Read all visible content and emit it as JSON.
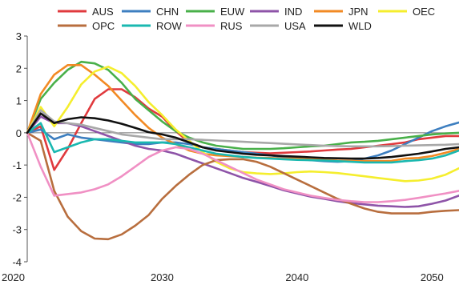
{
  "chart_data": {
    "type": "line",
    "title": "",
    "xlabel": "",
    "ylabel": "",
    "xlim": [
      2020,
      2052
    ],
    "ylim": [
      -4,
      3
    ],
    "x_ticks": [
      {
        "value": 2020,
        "label": "2020"
      },
      {
        "value": 2030,
        "label": "2030"
      },
      {
        "value": 2040,
        "label": "2040"
      },
      {
        "value": 2050,
        "label": "2050"
      }
    ],
    "y_ticks": [
      {
        "value": 3,
        "label": "3"
      },
      {
        "value": 2,
        "label": "2"
      },
      {
        "value": 1,
        "label": "1"
      },
      {
        "value": 0,
        "label": "0"
      },
      {
        "value": -1,
        "label": "-1"
      },
      {
        "value": -2,
        "label": "-2"
      },
      {
        "value": -3,
        "label": "-3"
      },
      {
        "value": -4,
        "label": "-4"
      }
    ],
    "zero_line": true,
    "grid": false,
    "legend_position": "top",
    "x": [
      2020,
      2021,
      2022,
      2023,
      2024,
      2025,
      2026,
      2027,
      2028,
      2029,
      2030,
      2031,
      2032,
      2033,
      2034,
      2035,
      2036,
      2037,
      2038,
      2039,
      2040,
      2041,
      2042,
      2043,
      2044,
      2045,
      2046,
      2047,
      2048,
      2049,
      2050,
      2051,
      2052
    ],
    "series": [
      {
        "name": "AUS",
        "color": "#e03a3e",
        "values": [
          0,
          0.2,
          -1.15,
          -0.5,
          0.3,
          1.05,
          1.35,
          1.35,
          1.1,
          0.75,
          0.5,
          0.05,
          -0.3,
          -0.45,
          -0.5,
          -0.55,
          -0.6,
          -0.62,
          -0.64,
          -0.62,
          -0.6,
          -0.58,
          -0.55,
          -0.52,
          -0.5,
          -0.45,
          -0.4,
          -0.35,
          -0.3,
          -0.2,
          -0.15,
          -0.1,
          -0.1
        ]
      },
      {
        "name": "CHN",
        "color": "#3e7fc0",
        "values": [
          0,
          0.1,
          -0.2,
          -0.05,
          -0.15,
          -0.2,
          -0.25,
          -0.3,
          -0.35,
          -0.35,
          -0.3,
          -0.3,
          -0.35,
          -0.45,
          -0.5,
          -0.55,
          -0.6,
          -0.65,
          -0.7,
          -0.75,
          -0.8,
          -0.85,
          -0.88,
          -0.9,
          -0.88,
          -0.8,
          -0.7,
          -0.55,
          -0.35,
          -0.15,
          0.05,
          0.2,
          0.32
        ]
      },
      {
        "name": "EUW",
        "color": "#49b04a",
        "values": [
          0,
          1.05,
          1.55,
          1.95,
          2.2,
          2.15,
          1.95,
          1.55,
          1.05,
          0.7,
          0.35,
          0.05,
          -0.15,
          -0.3,
          -0.4,
          -0.45,
          -0.5,
          -0.5,
          -0.5,
          -0.48,
          -0.45,
          -0.42,
          -0.4,
          -0.35,
          -0.3,
          -0.28,
          -0.25,
          -0.2,
          -0.15,
          -0.1,
          -0.05,
          -0.02,
          0
        ]
      },
      {
        "name": "IND",
        "color": "#8e54a8",
        "values": [
          0,
          0.5,
          0.3,
          0.3,
          0.2,
          0.05,
          -0.1,
          -0.25,
          -0.4,
          -0.5,
          -0.55,
          -0.65,
          -0.8,
          -0.95,
          -1.1,
          -1.25,
          -1.4,
          -1.52,
          -1.65,
          -1.78,
          -1.88,
          -1.98,
          -2.05,
          -2.12,
          -2.18,
          -2.22,
          -2.26,
          -2.28,
          -2.3,
          -2.28,
          -2.2,
          -2.1,
          -1.95
        ]
      },
      {
        "name": "JPN",
        "color": "#f28a24",
        "values": [
          0,
          1.2,
          1.8,
          2.1,
          2.1,
          1.8,
          1.45,
          1.0,
          0.55,
          0.15,
          -0.15,
          -0.35,
          -0.55,
          -0.65,
          -0.7,
          -0.72,
          -0.75,
          -0.77,
          -0.78,
          -0.8,
          -0.8,
          -0.82,
          -0.84,
          -0.86,
          -0.87,
          -0.88,
          -0.88,
          -0.87,
          -0.8,
          -0.78,
          -0.72,
          -0.62,
          -0.5
        ]
      },
      {
        "name": "OEC",
        "color": "#f5ee2e",
        "values": [
          0,
          0.8,
          0.2,
          0.8,
          1.5,
          1.9,
          2.05,
          1.85,
          1.45,
          0.95,
          0.55,
          0.1,
          -0.25,
          -0.6,
          -0.9,
          -1.1,
          -1.22,
          -1.26,
          -1.28,
          -1.26,
          -1.22,
          -1.2,
          -1.22,
          -1.25,
          -1.3,
          -1.35,
          -1.4,
          -1.45,
          -1.5,
          -1.48,
          -1.42,
          -1.3,
          -1.1
        ]
      },
      {
        "name": "OPC",
        "color": "#b86e3e",
        "values": [
          0,
          -0.25,
          -1.8,
          -2.6,
          -3.05,
          -3.28,
          -3.3,
          -3.15,
          -2.88,
          -2.55,
          -2.05,
          -1.65,
          -1.3,
          -1.0,
          -0.85,
          -0.82,
          -0.82,
          -0.9,
          -1.05,
          -1.25,
          -1.45,
          -1.65,
          -1.85,
          -2.05,
          -2.2,
          -2.35,
          -2.45,
          -2.5,
          -2.5,
          -2.5,
          -2.45,
          -2.42,
          -2.4
        ]
      },
      {
        "name": "ROW",
        "color": "#1ab8b0",
        "values": [
          0,
          0.3,
          -0.6,
          -0.45,
          -0.3,
          -0.2,
          -0.2,
          -0.25,
          -0.3,
          -0.3,
          -0.3,
          -0.35,
          -0.45,
          -0.55,
          -0.65,
          -0.7,
          -0.75,
          -0.78,
          -0.8,
          -0.82,
          -0.84,
          -0.85,
          -0.86,
          -0.88,
          -0.9,
          -0.92,
          -0.92,
          -0.92,
          -0.88,
          -0.85,
          -0.8,
          -0.7,
          -0.55
        ]
      },
      {
        "name": "RUS",
        "color": "#f090c4",
        "values": [
          0,
          -1.05,
          -1.95,
          -1.9,
          -1.85,
          -1.75,
          -1.6,
          -1.35,
          -1.05,
          -0.75,
          -0.55,
          -0.45,
          -0.5,
          -0.65,
          -0.85,
          -1.05,
          -1.25,
          -1.45,
          -1.6,
          -1.75,
          -1.85,
          -1.95,
          -2.02,
          -2.08,
          -2.12,
          -2.15,
          -2.15,
          -2.12,
          -2.08,
          -2.02,
          -1.95,
          -1.88,
          -1.8
        ]
      },
      {
        "name": "USA",
        "color": "#a8a8a8",
        "values": [
          0,
          0.7,
          0.35,
          0.3,
          0.25,
          0.15,
          0.05,
          -0.05,
          -0.1,
          -0.15,
          -0.2,
          -0.2,
          -0.2,
          -0.22,
          -0.24,
          -0.26,
          -0.28,
          -0.3,
          -0.32,
          -0.34,
          -0.36,
          -0.38,
          -0.4,
          -0.41,
          -0.42,
          -0.42,
          -0.42,
          -0.41,
          -0.4,
          -0.39,
          -0.38,
          -0.37,
          -0.35
        ]
      },
      {
        "name": "WLD",
        "color": "#111111",
        "values": [
          0,
          0.6,
          0.3,
          0.42,
          0.48,
          0.45,
          0.38,
          0.28,
          0.15,
          0.02,
          -0.05,
          -0.15,
          -0.3,
          -0.45,
          -0.55,
          -0.6,
          -0.65,
          -0.68,
          -0.7,
          -0.72,
          -0.74,
          -0.76,
          -0.78,
          -0.79,
          -0.8,
          -0.8,
          -0.78,
          -0.75,
          -0.7,
          -0.65,
          -0.58,
          -0.5,
          -0.45
        ]
      }
    ],
    "legend_rows": [
      [
        "AUS",
        "CHN",
        "EUW",
        "IND",
        "JPN",
        "OEC"
      ],
      [
        "OPC",
        "ROW",
        "RUS",
        "USA",
        "WLD"
      ]
    ]
  }
}
